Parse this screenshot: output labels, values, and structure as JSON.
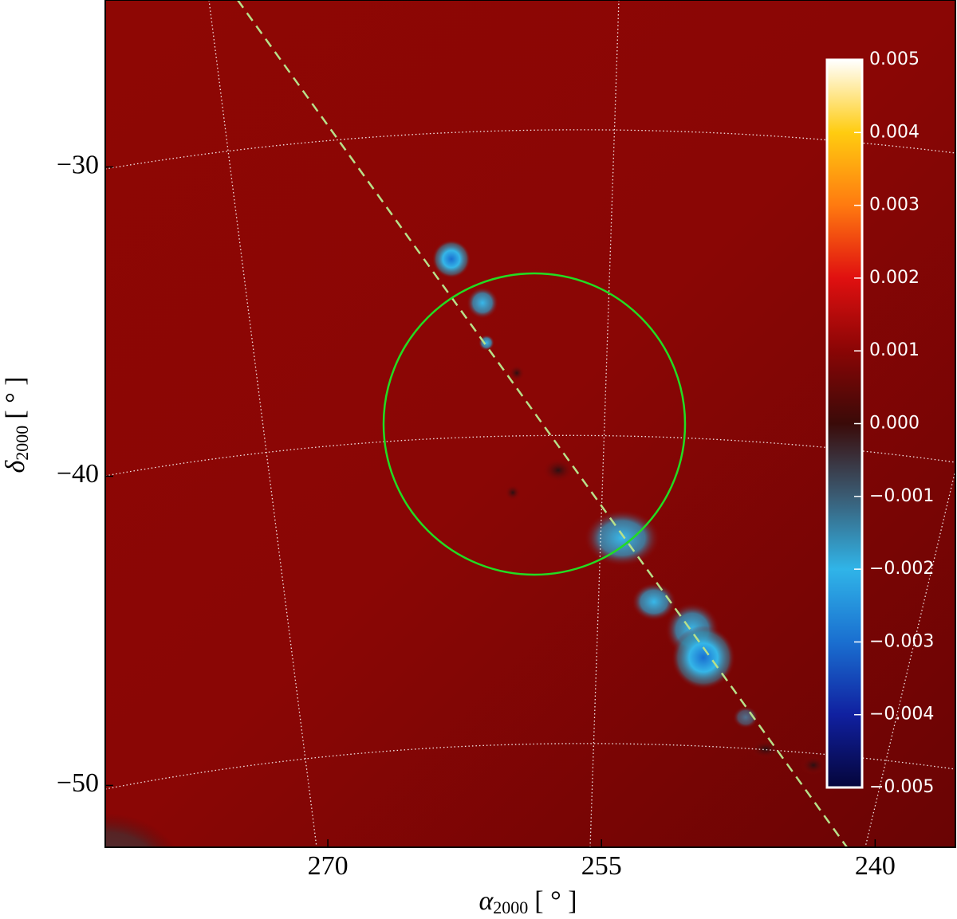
{
  "chart_data": {
    "type": "skymap",
    "x_label": {
      "symbol": "α",
      "subscript": "2000",
      "unit": "[ ° ]"
    },
    "y_label": {
      "symbol": "δ",
      "subscript": "2000",
      "unit": "[ ° ]"
    },
    "xlim": [
      282.2,
      235.6
    ],
    "ylim": [
      -52.0,
      -24.6
    ],
    "xticks": [
      270,
      255,
      240
    ],
    "yticks": [
      {
        "value": -30,
        "label": "−30"
      },
      {
        "value": -40,
        "label": "−40"
      },
      {
        "value": -50,
        "label": "−50"
      }
    ],
    "colorbar": {
      "clim": [
        -0.005,
        0.005
      ],
      "colors": [
        "#05053a",
        "#1020a0",
        "#1a6fd0",
        "#30b4e8",
        "#3a5c74",
        "#3a0a08",
        "#8a0505",
        "#e01010",
        "#ff7a10",
        "#ffcc10",
        "#ffffff"
      ],
      "ticks": [
        0.005,
        0.004,
        0.003,
        0.002,
        0.001,
        {
          "value": 0,
          "label": "0.000"
        },
        {
          "value": -0.001,
          "label": "−0.001"
        },
        {
          "value": -0.002,
          "label": "−0.002"
        },
        {
          "value": -0.003,
          "label": "−0.003"
        },
        {
          "value": -0.004,
          "label": "−0.004"
        },
        {
          "value": -0.005,
          "label": "−0.005"
        }
      ]
    }
  }
}
